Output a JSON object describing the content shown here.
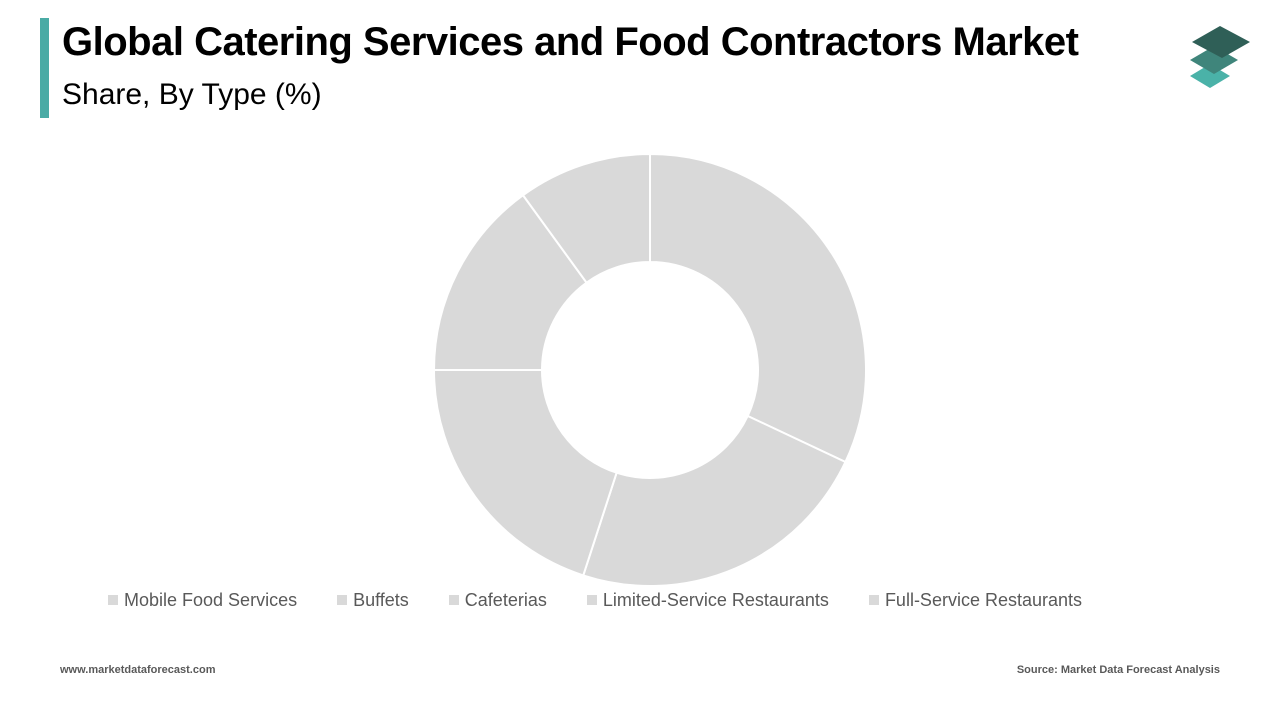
{
  "header": {
    "title": "Global Catering Services and Food Contractors Market",
    "subtitle": "Share, By Type (%)",
    "accent_color": "#4aaba5"
  },
  "logo": {
    "icon": "layered-stack-icon",
    "colors": [
      "#2f5f57",
      "#3f857b",
      "#4ab2a8"
    ]
  },
  "chart_data": {
    "type": "pie",
    "donut": true,
    "title": "Global Catering Services and Food Contractors Market",
    "subtitle": "Share, By Type (%)",
    "categories": [
      "Mobile Food Services",
      "Buffets",
      "Cafeterias",
      "Limited-Service Restaurants",
      "Full-Service Restaurants"
    ],
    "values": [
      10,
      15,
      20,
      23,
      32
    ],
    "legend": "bottom",
    "slice_color": "#d9d9d9",
    "separator_color": "#ffffff"
  },
  "footer": {
    "website": "www.marketdataforecast.com",
    "source": "Source: Market Data Forecast Analysis"
  }
}
